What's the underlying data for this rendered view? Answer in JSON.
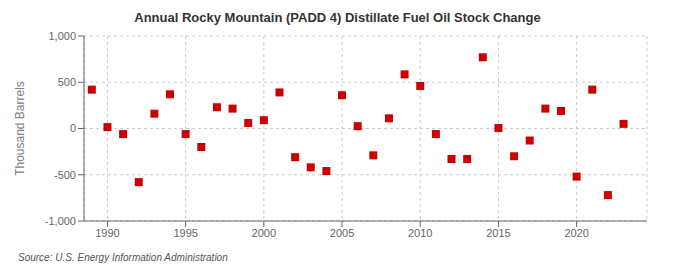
{
  "chart_data": {
    "type": "scatter",
    "title": "Annual Rocky Mountain (PADD 4) Distillate Fuel Oil Stock Change",
    "y_label": "Thousand Barrels",
    "annotations": [
      "Source: U.S. Energy Information Administration"
    ],
    "x": [
      1989,
      1990,
      1991,
      1992,
      1993,
      1994,
      1995,
      1996,
      1997,
      1998,
      1999,
      2000,
      2001,
      2002,
      2003,
      2004,
      2005,
      2006,
      2007,
      2008,
      2009,
      2010,
      2011,
      2012,
      2013,
      2014,
      2015,
      2016,
      2017,
      2018,
      2019,
      2020,
      2021,
      2022,
      2023
    ],
    "values": [
      420,
      15,
      -60,
      -580,
      160,
      370,
      -60,
      -200,
      230,
      215,
      60,
      90,
      390,
      -310,
      -420,
      -460,
      360,
      25,
      -290,
      110,
      585,
      460,
      -60,
      -330,
      -330,
      770,
      5,
      -300,
      -130,
      215,
      190,
      -520,
      420,
      -720,
      50
    ],
    "color": "#cc0000",
    "marker": "square",
    "xlim": [
      1988.5,
      2024.5
    ],
    "xticks": [
      1990,
      1995,
      2000,
      2005,
      2010,
      2015,
      2020
    ],
    "ylim": [
      -1000,
      1000
    ],
    "yticks": [
      {
        "value": -1000,
        "label": "-1,000"
      },
      -500,
      0,
      500,
      {
        "value": 1000,
        "label": "1,000"
      }
    ],
    "grid": true
  }
}
